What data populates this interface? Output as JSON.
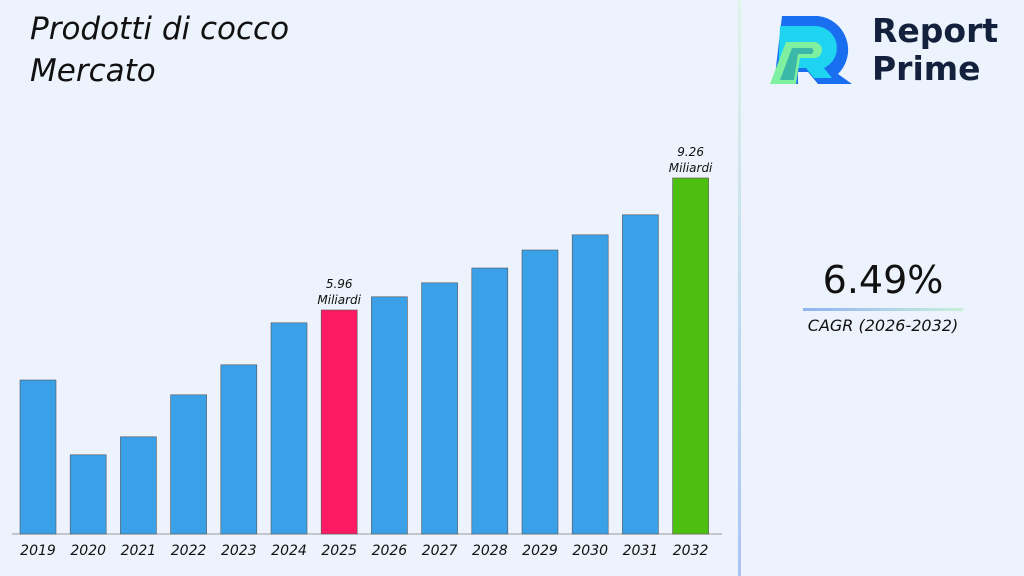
{
  "title_line1": "Prodotti di cocco",
  "title_line2": "Mercato",
  "brand": {
    "line1": "Report",
    "line2": "Prime"
  },
  "cagr": {
    "value": "6.49%",
    "label": "CAGR (2026-2032)"
  },
  "chart_data": {
    "type": "bar",
    "categories": [
      "2019",
      "2020",
      "2021",
      "2022",
      "2023",
      "2024",
      "2025",
      "2026",
      "2027",
      "2028",
      "2029",
      "2030",
      "2031",
      "2032"
    ],
    "values": [
      4.21,
      2.34,
      2.79,
      3.84,
      4.59,
      5.64,
      5.96,
      6.29,
      6.64,
      7.01,
      7.46,
      7.84,
      8.34,
      9.26
    ],
    "data_labels": {
      "6": [
        "5.96",
        "Miliardi"
      ],
      "13": [
        "9.26",
        "Miliardi"
      ]
    },
    "colors": {
      "default": "#3aa1e8",
      "highlight_2025": "#fc1a64",
      "highlight_2032": "#4cbf10"
    },
    "grid": false
  }
}
